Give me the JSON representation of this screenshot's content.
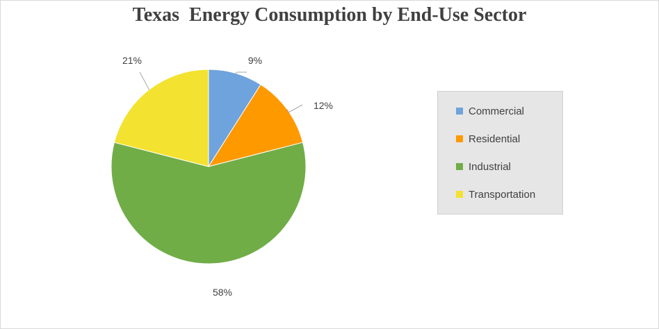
{
  "chart_data": {
    "type": "pie",
    "title": "Texas  Energy Consumption by End-Use Sector",
    "categories": [
      "Commercial",
      "Residential",
      "Industrial",
      "Transportation"
    ],
    "values": [
      9,
      12,
      58,
      21
    ],
    "labels": [
      "9%",
      "12%",
      "58%",
      "21%"
    ],
    "colors": [
      "#6fa3dd",
      "#ff9900",
      "#70ad47",
      "#f3e22f"
    ],
    "legend_position": "right",
    "start_angle": "12 o'clock",
    "direction": "clockwise"
  }
}
